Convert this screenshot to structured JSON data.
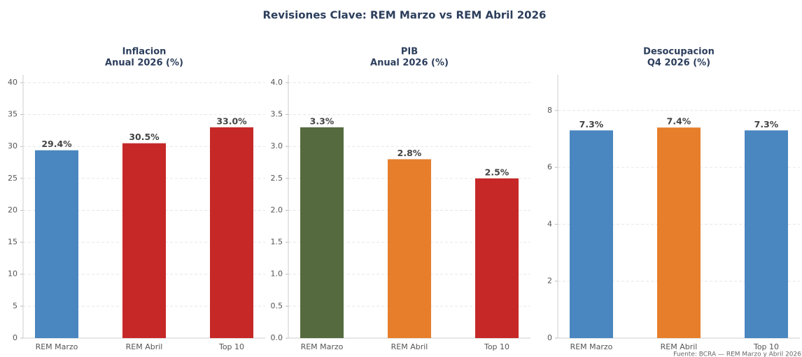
{
  "title": "Revisiones Clave: REM Marzo vs REM Abril 2026",
  "footnote": "Fuente: BCRA — REM Marzo y Abril 2026",
  "chart_data": [
    {
      "type": "bar",
      "title": [
        "Inflacion",
        "Anual 2026 (%)"
      ],
      "categories": [
        "REM Marzo",
        "REM Abril",
        "Top 10"
      ],
      "values": [
        29.4,
        30.5,
        33.0
      ],
      "value_labels": [
        "29.4%",
        "30.5%",
        "33.0%"
      ],
      "colors": [
        "#4a86c0",
        "#c62828",
        "#c62828"
      ],
      "ylim": [
        0,
        41.2
      ],
      "yticks": [
        0,
        5,
        10,
        15,
        20,
        25,
        30,
        35,
        40
      ],
      "grid": true
    },
    {
      "type": "bar",
      "title": [
        "PIB",
        "Anual 2026 (%)"
      ],
      "categories": [
        "REM Marzo",
        "REM Abril",
        "Top 10"
      ],
      "values": [
        3.3,
        2.8,
        2.5
      ],
      "value_labels": [
        "3.3%",
        "2.8%",
        "2.5%"
      ],
      "colors": [
        "#556b3f",
        "#e67e2b",
        "#c62828"
      ],
      "ylim": [
        0,
        4.12
      ],
      "yticks": [
        {
          "value": 0,
          "label": "0.0"
        },
        {
          "value": 0.5,
          "label": "0.5"
        },
        {
          "value": 1,
          "label": "1.0"
        },
        {
          "value": 1.5,
          "label": "1.5"
        },
        {
          "value": 2,
          "label": "2.0"
        },
        {
          "value": 2.5,
          "label": "2.5"
        },
        {
          "value": 3,
          "label": "3.0"
        },
        {
          "value": 3.5,
          "label": "3.5"
        },
        {
          "value": 4,
          "label": "4.0"
        }
      ],
      "grid": true
    },
    {
      "type": "bar",
      "title": [
        "Desocupacion",
        "Q4 2026 (%)"
      ],
      "categories": [
        "REM Marzo",
        "REM Abril",
        "Top 10"
      ],
      "values": [
        7.3,
        7.4,
        7.3
      ],
      "value_labels": [
        "7.3%",
        "7.4%",
        "7.3%"
      ],
      "colors": [
        "#4a86c0",
        "#e67e2b",
        "#4a86c0"
      ],
      "ylim": [
        0,
        9.25
      ],
      "yticks": [
        0,
        2,
        4,
        6,
        8
      ],
      "grid": true
    }
  ]
}
